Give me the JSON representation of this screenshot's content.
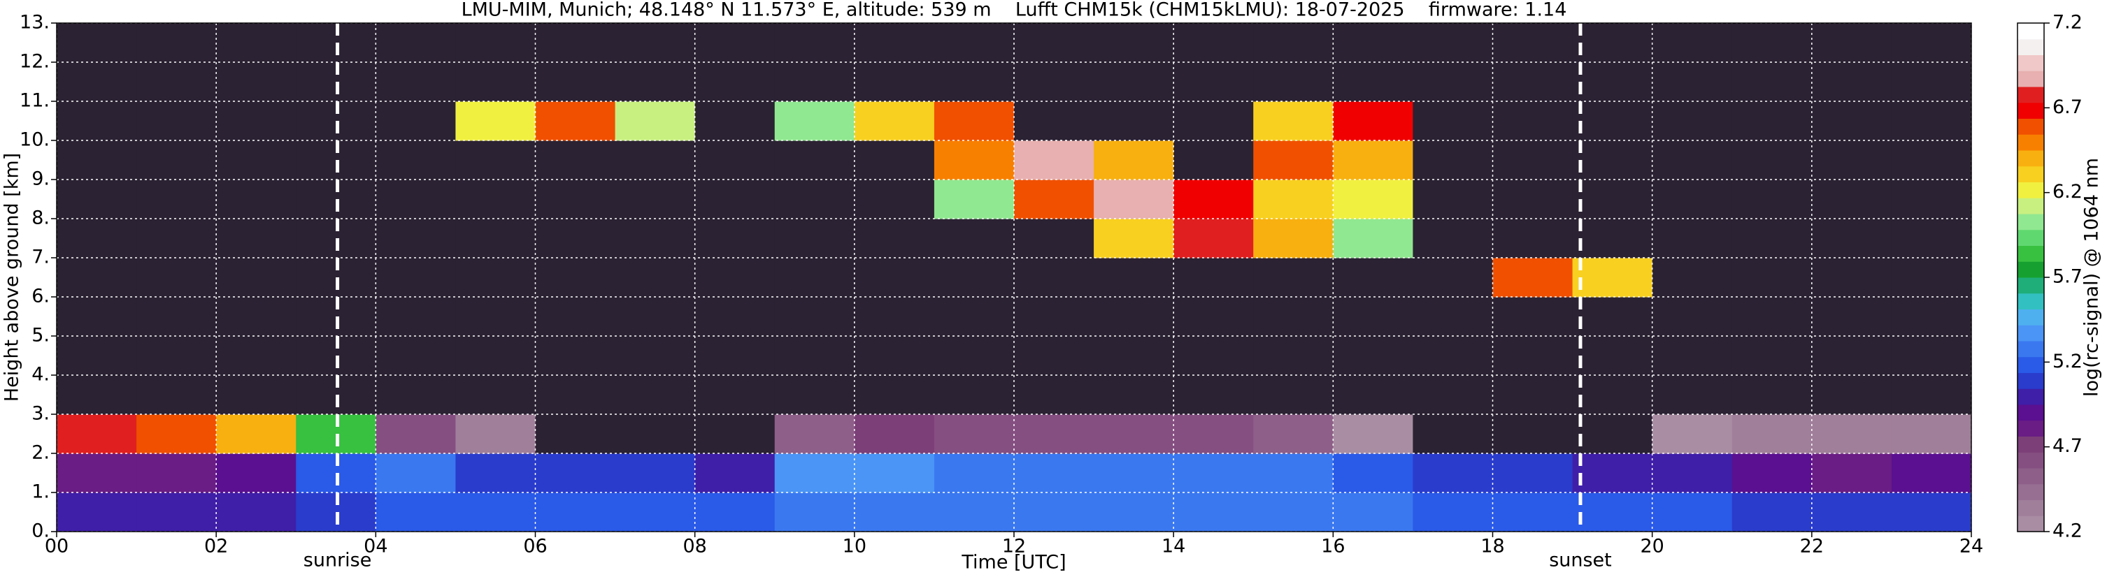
{
  "chart_data": {
    "type": "heatmap",
    "title": "LMU-MIM, Munich; 48.148° N 11.573° E, altitude: 539 m    Lufft CHM15k (CHM15kLMU): 18-07-2025    firmware: 1.14",
    "x_label": "Time [UTC]",
    "y_label": "Height above ground [km]",
    "xlim": [
      0,
      24
    ],
    "ylim": [
      0,
      13
    ],
    "xticks": [
      {
        "value": 0,
        "label": "00"
      },
      {
        "value": 2,
        "label": "02"
      },
      {
        "value": 4,
        "label": "04"
      },
      {
        "value": 6,
        "label": "06"
      },
      {
        "value": 8,
        "label": "08"
      },
      {
        "value": 10,
        "label": "10"
      },
      {
        "value": 12,
        "label": "12"
      },
      {
        "value": 14,
        "label": "14"
      },
      {
        "value": 16,
        "label": "16"
      },
      {
        "value": 18,
        "label": "18"
      },
      {
        "value": 20,
        "label": "20"
      },
      {
        "value": 22,
        "label": "22"
      },
      {
        "value": 24,
        "label": "24"
      }
    ],
    "yticks": [
      {
        "value": 0,
        "label": "0."
      },
      {
        "value": 1,
        "label": "1."
      },
      {
        "value": 2,
        "label": "2."
      },
      {
        "value": 3,
        "label": "3."
      },
      {
        "value": 4,
        "label": "4."
      },
      {
        "value": 5,
        "label": "5."
      },
      {
        "value": 6,
        "label": "6."
      },
      {
        "value": 7,
        "label": "7."
      },
      {
        "value": 8,
        "label": "8."
      },
      {
        "value": 9,
        "label": "9."
      },
      {
        "value": 10,
        "label": "10."
      },
      {
        "value": 11,
        "label": "11."
      },
      {
        "value": 12,
        "label": "12."
      },
      {
        "value": 13,
        "label": "13."
      }
    ],
    "grid": true,
    "xbins": [
      0,
      1,
      2,
      3,
      4,
      5,
      6,
      7,
      8,
      9,
      10,
      11,
      12,
      13,
      14,
      15,
      16,
      17,
      18,
      19,
      20,
      21,
      22,
      23,
      24
    ],
    "ybins": [
      0,
      1,
      2,
      3,
      4,
      5,
      6,
      7,
      8,
      9,
      10,
      11,
      12,
      13
    ],
    "z": [
      [
        5.0,
        5.0,
        5.0,
        5.1,
        5.2,
        5.2,
        5.2,
        5.2,
        5.2,
        5.3,
        5.3,
        5.3,
        5.3,
        5.3,
        5.3,
        5.3,
        5.3,
        5.2,
        5.2,
        5.2,
        5.2,
        5.1,
        5.1,
        5.1
      ],
      [
        4.8,
        4.8,
        4.9,
        5.2,
        5.3,
        5.1,
        5.1,
        5.1,
        5.0,
        5.4,
        5.4,
        5.3,
        5.3,
        5.3,
        5.3,
        5.3,
        5.2,
        5.1,
        5.1,
        5.0,
        5.0,
        4.9,
        4.8,
        4.9
      ],
      [
        6.8,
        6.6,
        6.4,
        5.8,
        4.6,
        4.3,
        4.1,
        4.0,
        4.0,
        4.5,
        4.7,
        4.6,
        4.6,
        4.6,
        4.6,
        4.5,
        4.2,
        4.0,
        4.0,
        4.1,
        4.2,
        4.3,
        4.3,
        4.3
      ],
      [
        4.0,
        4.0,
        4.0,
        4.0,
        4.0,
        4.0,
        4.0,
        4.0,
        4.0,
        4.0,
        4.0,
        4.0,
        4.0,
        4.0,
        4.0,
        4.0,
        4.0,
        4.0,
        4.0,
        4.0,
        4.0,
        4.0,
        4.0,
        4.0
      ],
      [
        4.0,
        4.0,
        4.0,
        4.0,
        4.0,
        4.0,
        4.0,
        4.0,
        4.0,
        4.0,
        4.0,
        4.0,
        4.0,
        4.0,
        4.0,
        4.0,
        4.0,
        4.0,
        4.0,
        4.0,
        4.0,
        4.0,
        4.0,
        4.0
      ],
      [
        4.0,
        4.0,
        4.0,
        4.0,
        4.0,
        4.0,
        4.0,
        4.0,
        4.0,
        4.0,
        4.0,
        4.0,
        4.0,
        4.0,
        4.0,
        4.0,
        4.0,
        4.0,
        4.0,
        4.0,
        4.0,
        4.0,
        4.0,
        4.0
      ],
      [
        4.0,
        4.0,
        4.0,
        4.0,
        4.0,
        4.0,
        4.0,
        4.0,
        4.0,
        4.0,
        4.0,
        4.0,
        4.0,
        4.0,
        4.0,
        4.0,
        4.0,
        4.0,
        6.6,
        6.3,
        4.0,
        4.0,
        4.0,
        4.0
      ],
      [
        4.0,
        4.0,
        4.0,
        4.0,
        4.0,
        4.0,
        4.0,
        4.0,
        4.0,
        4.0,
        4.0,
        4.0,
        4.0,
        6.3,
        6.8,
        6.4,
        6.0,
        4.0,
        4.0,
        4.0,
        4.0,
        4.0,
        4.0,
        4.0
      ],
      [
        4.0,
        4.0,
        4.0,
        4.0,
        4.0,
        4.0,
        4.0,
        4.0,
        4.0,
        4.0,
        4.0,
        6.0,
        6.6,
        6.9,
        6.7,
        6.3,
        6.2,
        4.0,
        4.0,
        4.0,
        4.0,
        4.0,
        4.0,
        4.0
      ],
      [
        4.0,
        4.0,
        4.0,
        4.0,
        4.0,
        4.0,
        4.0,
        4.0,
        4.0,
        4.0,
        4.0,
        6.5,
        6.9,
        6.4,
        4.0,
        6.6,
        6.4,
        4.0,
        4.0,
        4.0,
        4.0,
        4.0,
        4.0,
        4.0
      ],
      [
        4.0,
        4.0,
        4.0,
        4.0,
        4.0,
        6.2,
        6.6,
        6.1,
        4.0,
        6.0,
        6.3,
        6.6,
        4.0,
        4.0,
        4.0,
        6.3,
        6.7,
        4.0,
        4.0,
        4.0,
        4.0,
        4.0,
        4.0,
        4.0
      ],
      [
        4.0,
        4.0,
        4.0,
        4.0,
        4.0,
        4.0,
        4.0,
        4.0,
        4.0,
        4.0,
        4.0,
        4.0,
        4.0,
        4.0,
        4.0,
        4.0,
        4.0,
        4.0,
        4.0,
        4.0,
        4.0,
        4.0,
        4.0,
        4.0
      ],
      [
        4.0,
        4.0,
        4.0,
        4.0,
        4.0,
        4.0,
        4.0,
        4.0,
        4.0,
        4.0,
        4.0,
        4.0,
        4.0,
        4.0,
        4.0,
        4.0,
        4.0,
        4.0,
        4.0,
        4.0,
        4.0,
        4.0,
        4.0,
        4.0
      ]
    ],
    "annotations": [
      {
        "text": "sunrise",
        "x": 3.52
      },
      {
        "text": "sunset",
        "x": 19.1
      }
    ],
    "colorbar": {
      "label": "log(rc-signal) @ 1064 nm",
      "lim": [
        4.2,
        7.2
      ],
      "ticks": [
        4.2,
        4.7,
        5.2,
        5.7,
        6.2,
        6.7,
        7.2
      ],
      "under_color": "#2b2233",
      "colors": [
        "#a98ea3",
        "#a07f9a",
        "#976f92",
        "#8e5f89",
        "#854f81",
        "#7c3f78",
        "#6a1d84",
        "#5a1090",
        "#3f1fa8",
        "#2a3ccc",
        "#2a5ae8",
        "#3a78f0",
        "#4a95f5",
        "#4fb0f0",
        "#32c0c0",
        "#1fae7a",
        "#16a030",
        "#38c040",
        "#60d870",
        "#90e890",
        "#c8f080",
        "#f0f040",
        "#f8d020",
        "#f8b010",
        "#f88000",
        "#f05000",
        "#f00000",
        "#e02020",
        "#e8b0b0",
        "#f0c8c8",
        "#f4f0f0",
        "#ffffff"
      ]
    }
  }
}
